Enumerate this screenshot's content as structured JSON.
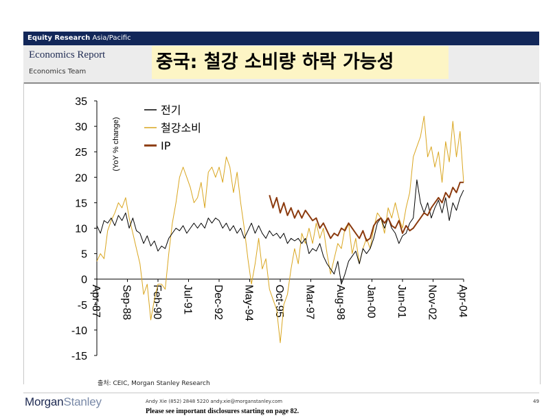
{
  "header": {
    "section": "Equity Research",
    "region": "Asia/Pacific",
    "report": "Economics Report",
    "team": "Economics Team",
    "title": "중국: 철강 소비량 하락 가능성"
  },
  "footer": {
    "source": "출처: CEIC, Morgan Stanley Research",
    "logo_main": "Morgan",
    "logo_light": "Stanley",
    "contact": "Andy Xie (852) 2848 5220 andy.xie@morganstanley.com",
    "disclosure": "Please see important disclosures starting on page 82.",
    "page": "49"
  },
  "chart_data": {
    "type": "line",
    "ylabel": "(YoY % change)",
    "ylim": [
      -15,
      35
    ],
    "yticks": [
      -15,
      -10,
      -5,
      0,
      5,
      10,
      15,
      20,
      25,
      30,
      35
    ],
    "xlim": [
      "1987-04",
      "2004-04"
    ],
    "xticks": [
      "Apr-87",
      "Sep-88",
      "Feb-90",
      "Jul-91",
      "Dec-92",
      "May-94",
      "Oct-95",
      "Mar-97",
      "Aug-98",
      "Jan-00",
      "Jun-01",
      "Nov-02",
      "Apr-04"
    ],
    "legend_position": "top-left",
    "series": [
      {
        "name": "전기",
        "color": "#000000",
        "points": [
          [
            "1987-04",
            10.5
          ],
          [
            "1987-06",
            9
          ],
          [
            "1987-08",
            11.5
          ],
          [
            "1987-10",
            11
          ],
          [
            "1987-12",
            12
          ],
          [
            "1988-02",
            10.5
          ],
          [
            "1988-04",
            12.5
          ],
          [
            "1988-06",
            11.5
          ],
          [
            "1988-08",
            13
          ],
          [
            "1988-10",
            10
          ],
          [
            "1988-12",
            12
          ],
          [
            "1989-02",
            9.5
          ],
          [
            "1989-04",
            9
          ],
          [
            "1989-06",
            7
          ],
          [
            "1989-08",
            8.5
          ],
          [
            "1989-10",
            6.5
          ],
          [
            "1989-12",
            7.5
          ],
          [
            "1990-02",
            5.5
          ],
          [
            "1990-04",
            6.5
          ],
          [
            "1990-06",
            6
          ],
          [
            "1990-08",
            8
          ],
          [
            "1990-10",
            9
          ],
          [
            "1990-12",
            10
          ],
          [
            "1991-02",
            9.5
          ],
          [
            "1991-04",
            10.5
          ],
          [
            "1991-06",
            9
          ],
          [
            "1991-08",
            10
          ],
          [
            "1991-10",
            11
          ],
          [
            "1991-12",
            10
          ],
          [
            "1992-02",
            11
          ],
          [
            "1992-04",
            10
          ],
          [
            "1992-06",
            12
          ],
          [
            "1992-08",
            11
          ],
          [
            "1992-10",
            12
          ],
          [
            "1992-12",
            11.5
          ],
          [
            "1993-02",
            10
          ],
          [
            "1993-04",
            11
          ],
          [
            "1993-06",
            9.5
          ],
          [
            "1993-08",
            10.5
          ],
          [
            "1993-10",
            9
          ],
          [
            "1993-12",
            10
          ],
          [
            "1994-02",
            8
          ],
          [
            "1994-04",
            9.5
          ],
          [
            "1994-06",
            11
          ],
          [
            "1994-08",
            9
          ],
          [
            "1994-10",
            10.5
          ],
          [
            "1994-12",
            9
          ],
          [
            "1995-02",
            8
          ],
          [
            "1995-04",
            9.5
          ],
          [
            "1995-06",
            8.5
          ],
          [
            "1995-08",
            9
          ],
          [
            "1995-10",
            8
          ],
          [
            "1995-12",
            9
          ],
          [
            "1996-02",
            7
          ],
          [
            "1996-04",
            8
          ],
          [
            "1996-06",
            7.5
          ],
          [
            "1996-08",
            8
          ],
          [
            "1996-10",
            7
          ],
          [
            "1996-12",
            8
          ],
          [
            "1997-02",
            5
          ],
          [
            "1997-04",
            6
          ],
          [
            "1997-06",
            5.5
          ],
          [
            "1997-08",
            7
          ],
          [
            "1997-10",
            4.5
          ],
          [
            "1997-12",
            3
          ],
          [
            "1998-02",
            2
          ],
          [
            "1998-04",
            1
          ],
          [
            "1998-06",
            3.5
          ],
          [
            "1998-08",
            -1
          ],
          [
            "1998-10",
            1
          ],
          [
            "1998-12",
            3.5
          ],
          [
            "1999-02",
            4.5
          ],
          [
            "1999-04",
            5.5
          ],
          [
            "1999-06",
            3
          ],
          [
            "1999-08",
            6
          ],
          [
            "1999-10",
            5
          ],
          [
            "1999-12",
            6
          ],
          [
            "2000-02",
            8
          ],
          [
            "2000-04",
            11
          ],
          [
            "2000-06",
            12
          ],
          [
            "2000-08",
            10
          ],
          [
            "2000-10",
            12
          ],
          [
            "2000-12",
            10
          ],
          [
            "2001-02",
            9
          ],
          [
            "2001-04",
            7
          ],
          [
            "2001-06",
            8.5
          ],
          [
            "2001-08",
            9
          ],
          [
            "2001-10",
            11
          ],
          [
            "2001-12",
            12
          ],
          [
            "2002-02",
            19.5
          ],
          [
            "2002-04",
            15
          ],
          [
            "2002-06",
            13
          ],
          [
            "2002-08",
            15
          ],
          [
            "2002-10",
            12
          ],
          [
            "2002-12",
            14
          ],
          [
            "2003-02",
            15.5
          ],
          [
            "2003-04",
            13
          ],
          [
            "2003-06",
            16
          ],
          [
            "2003-08",
            11.5
          ],
          [
            "2003-10",
            15
          ],
          [
            "2003-12",
            13.5
          ],
          [
            "2004-02",
            16
          ],
          [
            "2004-04",
            17.5
          ]
        ]
      },
      {
        "name": "철강소비",
        "color": "#d9a51e",
        "points": [
          [
            "1987-04",
            3.5
          ],
          [
            "1987-06",
            5
          ],
          [
            "1987-08",
            4
          ],
          [
            "1987-10",
            9.5
          ],
          [
            "1987-12",
            11.5
          ],
          [
            "1988-02",
            13
          ],
          [
            "1988-04",
            15
          ],
          [
            "1988-06",
            14
          ],
          [
            "1988-08",
            16
          ],
          [
            "1988-10",
            12
          ],
          [
            "1988-12",
            9
          ],
          [
            "1989-02",
            6
          ],
          [
            "1989-04",
            3
          ],
          [
            "1989-06",
            -3
          ],
          [
            "1989-08",
            -1
          ],
          [
            "1989-10",
            -8
          ],
          [
            "1989-12",
            -4
          ],
          [
            "1990-02",
            -1
          ],
          [
            "1990-04",
            -1
          ],
          [
            "1990-06",
            -2
          ],
          [
            "1990-08",
            5
          ],
          [
            "1990-10",
            11
          ],
          [
            "1990-12",
            15
          ],
          [
            "1991-02",
            20
          ],
          [
            "1991-04",
            22
          ],
          [
            "1991-06",
            20
          ],
          [
            "1991-08",
            18
          ],
          [
            "1991-10",
            15
          ],
          [
            "1991-12",
            16
          ],
          [
            "1992-02",
            19
          ],
          [
            "1992-04",
            14
          ],
          [
            "1992-06",
            21
          ],
          [
            "1992-08",
            22
          ],
          [
            "1992-10",
            20
          ],
          [
            "1992-12",
            22
          ],
          [
            "1993-02",
            19
          ],
          [
            "1993-04",
            24
          ],
          [
            "1993-06",
            22
          ],
          [
            "1993-08",
            17
          ],
          [
            "1993-10",
            21
          ],
          [
            "1993-12",
            15
          ],
          [
            "1994-02",
            10
          ],
          [
            "1994-04",
            4
          ],
          [
            "1994-06",
            -1
          ],
          [
            "1994-08",
            3
          ],
          [
            "1994-10",
            8
          ],
          [
            "1994-12",
            2
          ],
          [
            "1995-02",
            4
          ],
          [
            "1995-04",
            -2
          ],
          [
            "1995-06",
            -4
          ],
          [
            "1995-08",
            -6
          ],
          [
            "1995-10",
            -12.5
          ],
          [
            "1995-12",
            -5
          ],
          [
            "1996-02",
            -3
          ],
          [
            "1996-04",
            2
          ],
          [
            "1996-06",
            6
          ],
          [
            "1996-08",
            3
          ],
          [
            "1996-10",
            9
          ],
          [
            "1996-12",
            7
          ],
          [
            "1997-02",
            10
          ],
          [
            "1997-04",
            7
          ],
          [
            "1997-06",
            11
          ],
          [
            "1997-08",
            8
          ],
          [
            "1997-10",
            10
          ],
          [
            "1997-12",
            5
          ],
          [
            "1998-02",
            1
          ],
          [
            "1998-04",
            4
          ],
          [
            "1998-06",
            7
          ],
          [
            "1998-08",
            6
          ],
          [
            "1998-10",
            10
          ],
          [
            "1998-12",
            11
          ],
          [
            "1999-02",
            5
          ],
          [
            "1999-04",
            8
          ],
          [
            "1999-06",
            3
          ],
          [
            "1999-08",
            6
          ],
          [
            "1999-10",
            8
          ],
          [
            "1999-12",
            6
          ],
          [
            "2000-02",
            10
          ],
          [
            "2000-04",
            13
          ],
          [
            "2000-06",
            12
          ],
          [
            "2000-08",
            9
          ],
          [
            "2000-10",
            14
          ],
          [
            "2000-12",
            12
          ],
          [
            "2001-02",
            15
          ],
          [
            "2001-04",
            12
          ],
          [
            "2001-06",
            10
          ],
          [
            "2001-08",
            14
          ],
          [
            "2001-10",
            17
          ],
          [
            "2001-12",
            24
          ],
          [
            "2002-02",
            26
          ],
          [
            "2002-04",
            28
          ],
          [
            "2002-06",
            32
          ],
          [
            "2002-08",
            24
          ],
          [
            "2002-10",
            26
          ],
          [
            "2002-12",
            22
          ],
          [
            "2003-02",
            25
          ],
          [
            "2003-04",
            19
          ],
          [
            "2003-06",
            27
          ],
          [
            "2003-08",
            23
          ],
          [
            "2003-10",
            31
          ],
          [
            "2003-12",
            24
          ],
          [
            "2004-02",
            29
          ],
          [
            "2004-04",
            19
          ]
        ]
      },
      {
        "name": "IP",
        "color": "#8b3a0e",
        "points": [
          [
            "1995-04",
            16.5
          ],
          [
            "1995-06",
            14
          ],
          [
            "1995-08",
            16
          ],
          [
            "1995-10",
            13
          ],
          [
            "1995-12",
            15
          ],
          [
            "1996-02",
            12.5
          ],
          [
            "1996-04",
            14
          ],
          [
            "1996-06",
            12
          ],
          [
            "1996-08",
            13.5
          ],
          [
            "1996-10",
            12
          ],
          [
            "1996-12",
            13.5
          ],
          [
            "1997-02",
            12.5
          ],
          [
            "1997-04",
            11.5
          ],
          [
            "1997-06",
            12
          ],
          [
            "1997-08",
            10
          ],
          [
            "1997-10",
            11
          ],
          [
            "1997-12",
            9.5
          ],
          [
            "1998-02",
            8
          ],
          [
            "1998-04",
            9
          ],
          [
            "1998-06",
            8.5
          ],
          [
            "1998-08",
            10
          ],
          [
            "1998-10",
            9.5
          ],
          [
            "1998-12",
            11
          ],
          [
            "1999-02",
            10
          ],
          [
            "1999-04",
            9
          ],
          [
            "1999-06",
            8
          ],
          [
            "1999-08",
            9.5
          ],
          [
            "1999-10",
            7.5
          ],
          [
            "1999-12",
            8
          ],
          [
            "2000-02",
            10.5
          ],
          [
            "2000-04",
            11.5
          ],
          [
            "2000-06",
            12
          ],
          [
            "2000-08",
            11
          ],
          [
            "2000-10",
            12
          ],
          [
            "2000-12",
            10.5
          ],
          [
            "2001-02",
            10
          ],
          [
            "2001-04",
            11.5
          ],
          [
            "2001-06",
            9
          ],
          [
            "2001-08",
            10.5
          ],
          [
            "2001-10",
            9.5
          ],
          [
            "2001-12",
            10
          ],
          [
            "2002-02",
            11
          ],
          [
            "2002-04",
            12
          ],
          [
            "2002-06",
            13
          ],
          [
            "2002-08",
            12.5
          ],
          [
            "2002-10",
            14
          ],
          [
            "2002-12",
            15
          ],
          [
            "2003-02",
            16
          ],
          [
            "2003-04",
            15
          ],
          [
            "2003-06",
            17
          ],
          [
            "2003-08",
            16
          ],
          [
            "2003-10",
            18
          ],
          [
            "2003-12",
            17
          ],
          [
            "2004-02",
            19
          ],
          [
            "2004-04",
            19
          ]
        ]
      }
    ]
  }
}
